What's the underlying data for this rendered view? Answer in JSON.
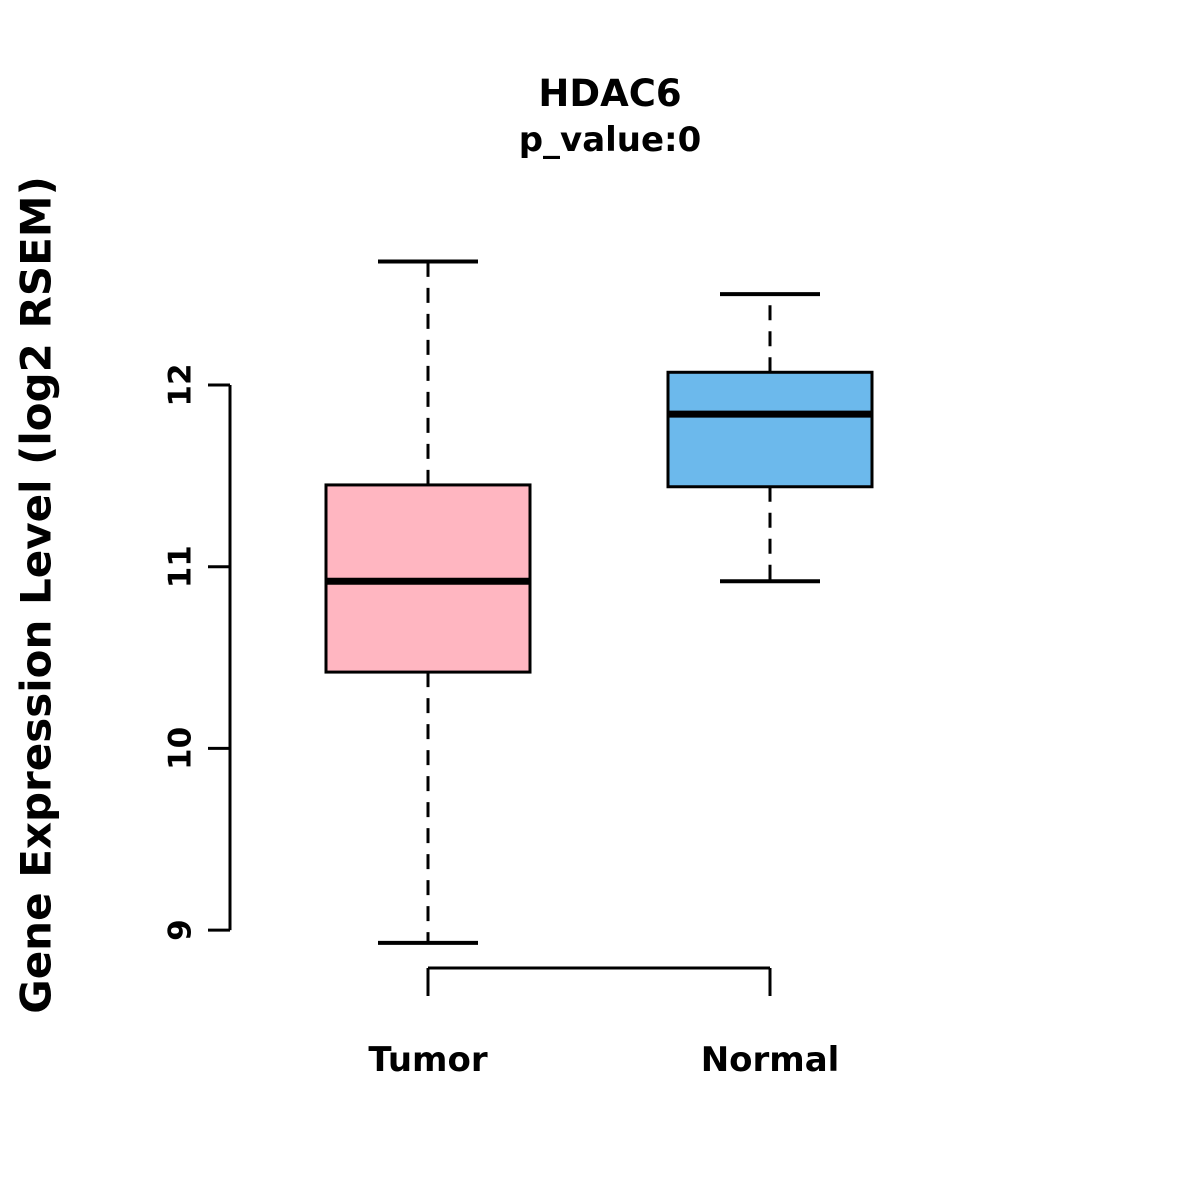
{
  "chart_data": {
    "type": "boxplot",
    "title": "HDAC6",
    "subtitle": "p_value:0",
    "ylabel": "Gene Expression Level (log2 RSEM)",
    "categories": [
      "Tumor",
      "Normal"
    ],
    "yticks": [
      9,
      10,
      11,
      12
    ],
    "ylim": [
      8.6,
      12.95
    ],
    "grid": false,
    "legend": "none",
    "box_border_color": "#000000",
    "series": [
      {
        "name": "Tumor",
        "color": "#FFB6C1",
        "whisker_low": 8.93,
        "q1": 10.42,
        "median": 10.92,
        "q3": 11.45,
        "whisker_high": 12.68
      },
      {
        "name": "Normal",
        "color": "#6CB9EC",
        "whisker_low": 10.92,
        "q1": 11.44,
        "median": 11.84,
        "q3": 12.07,
        "whisker_high": 12.5
      }
    ]
  }
}
